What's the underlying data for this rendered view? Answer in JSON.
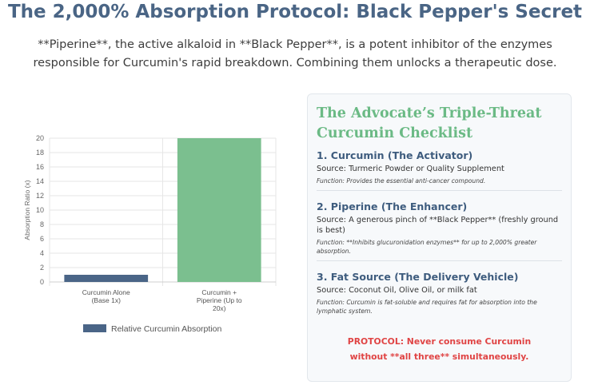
{
  "page": {
    "title": "The 2,000% Absorption Protocol: Black Pepper's Secret",
    "intro": "**Piperine**, the active alkaloid in **Black Pepper**, is a potent inhibitor of the enzymes responsible for Curcumin's rapid breakdown. Combining them unlocks a therapeutic dose."
  },
  "chart_data": {
    "type": "bar",
    "categories": [
      [
        "Curcumin Alone",
        "(Base 1x)"
      ],
      [
        "Curcumin +",
        "Piperine (Up to",
        "20x)"
      ]
    ],
    "series": [
      {
        "name": "Relative Curcumin Absorption",
        "values": [
          1,
          20
        ]
      }
    ],
    "colors": [
      "#4a6587",
      "#7bbf8f"
    ],
    "xlabel": "",
    "ylabel": "Absorption Ratio (x)",
    "ylim": [
      0,
      20
    ],
    "yticks": [
      0,
      2,
      4,
      6,
      8,
      10,
      12,
      14,
      16,
      18,
      20
    ],
    "grid": true,
    "legend": "bottom"
  },
  "checklist": {
    "title": "The Advocate’s Triple-Threat Curcumin Checklist",
    "items": [
      {
        "heading": "1. Curcumin (The Activator)",
        "source": "Source: Turmeric Powder or Quality Supplement",
        "function": "Function: Provides the essential anti-cancer compound."
      },
      {
        "heading": "2. Piperine (The Enhancer)",
        "source": "Source: A generous pinch of **Black Pepper** (freshly ground is best)",
        "function": "Function: **Inhibits glucuronidation enzymes** for up to 2,000% greater absorption."
      },
      {
        "heading": "3. Fat Source (The Delivery Vehicle)",
        "source": "Source: Coconut Oil, Olive Oil, or milk fat",
        "function": "Function: Curcumin is fat-soluble and requires fat for absorption into the lymphatic system."
      }
    ],
    "protocol": "PROTOCOL: Never consume Curcumin without **all three** simultaneously."
  }
}
